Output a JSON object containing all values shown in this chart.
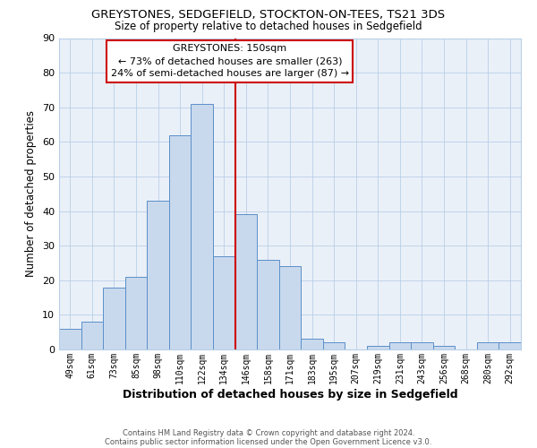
{
  "title1": "GREYSTONES, SEDGEFIELD, STOCKTON-ON-TEES, TS21 3DS",
  "title2": "Size of property relative to detached houses in Sedgefield",
  "xlabel": "Distribution of detached houses by size in Sedgefield",
  "ylabel": "Number of detached properties",
  "bar_labels": [
    "49sqm",
    "61sqm",
    "73sqm",
    "85sqm",
    "98sqm",
    "110sqm",
    "122sqm",
    "134sqm",
    "146sqm",
    "158sqm",
    "171sqm",
    "183sqm",
    "195sqm",
    "207sqm",
    "219sqm",
    "231sqm",
    "243sqm",
    "256sqm",
    "268sqm",
    "280sqm",
    "292sqm"
  ],
  "bar_values": [
    6,
    8,
    18,
    21,
    43,
    62,
    71,
    27,
    39,
    26,
    24,
    3,
    2,
    0,
    1,
    2,
    2,
    1,
    0,
    2,
    2
  ],
  "bar_color": "#c9d9ed",
  "bar_edge_color": "#5b8fc9",
  "ylim": [
    0,
    90
  ],
  "yticks": [
    0,
    10,
    20,
    30,
    40,
    50,
    60,
    70,
    80,
    90
  ],
  "vline_index": 8,
  "vline_color": "#cc0000",
  "annotation_title": "GREYSTONES: 150sqm",
  "annotation_line1": "← 73% of detached houses are smaller (263)",
  "annotation_line2": "24% of semi-detached houses are larger (87) →",
  "annotation_box_color": "#cc0000",
  "footer1": "Contains HM Land Registry data © Crown copyright and database right 2024.",
  "footer2": "Contains public sector information licensed under the Open Government Licence v3.0.",
  "fig_bg_color": "#ffffff",
  "plot_bg_color": "#eaf0f8"
}
